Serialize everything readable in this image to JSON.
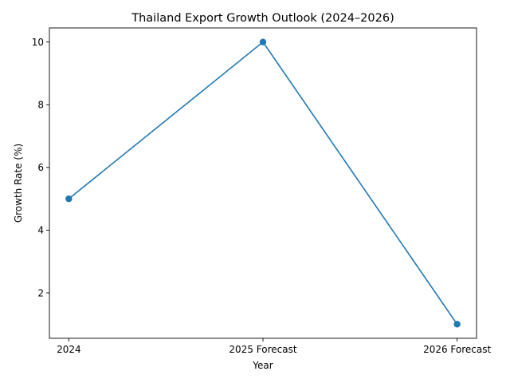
{
  "chart_data": {
    "type": "line",
    "title": "Thailand Export Growth Outlook (2024–2026)",
    "xlabel": "Year",
    "ylabel": "Growth Rate (%)",
    "categories": [
      "2024",
      "2025 Forecast",
      "2026 Forecast"
    ],
    "series": [
      {
        "values": [
          5,
          10,
          1
        ]
      }
    ],
    "ylim": [
      0.55,
      10.45
    ],
    "yticks": [
      "2",
      "4",
      "6",
      "8",
      "10"
    ],
    "grid": false,
    "legend": "none",
    "colors": {
      "line": "#1f77b4",
      "axes": "#000000",
      "background": "#ffffff"
    }
  }
}
